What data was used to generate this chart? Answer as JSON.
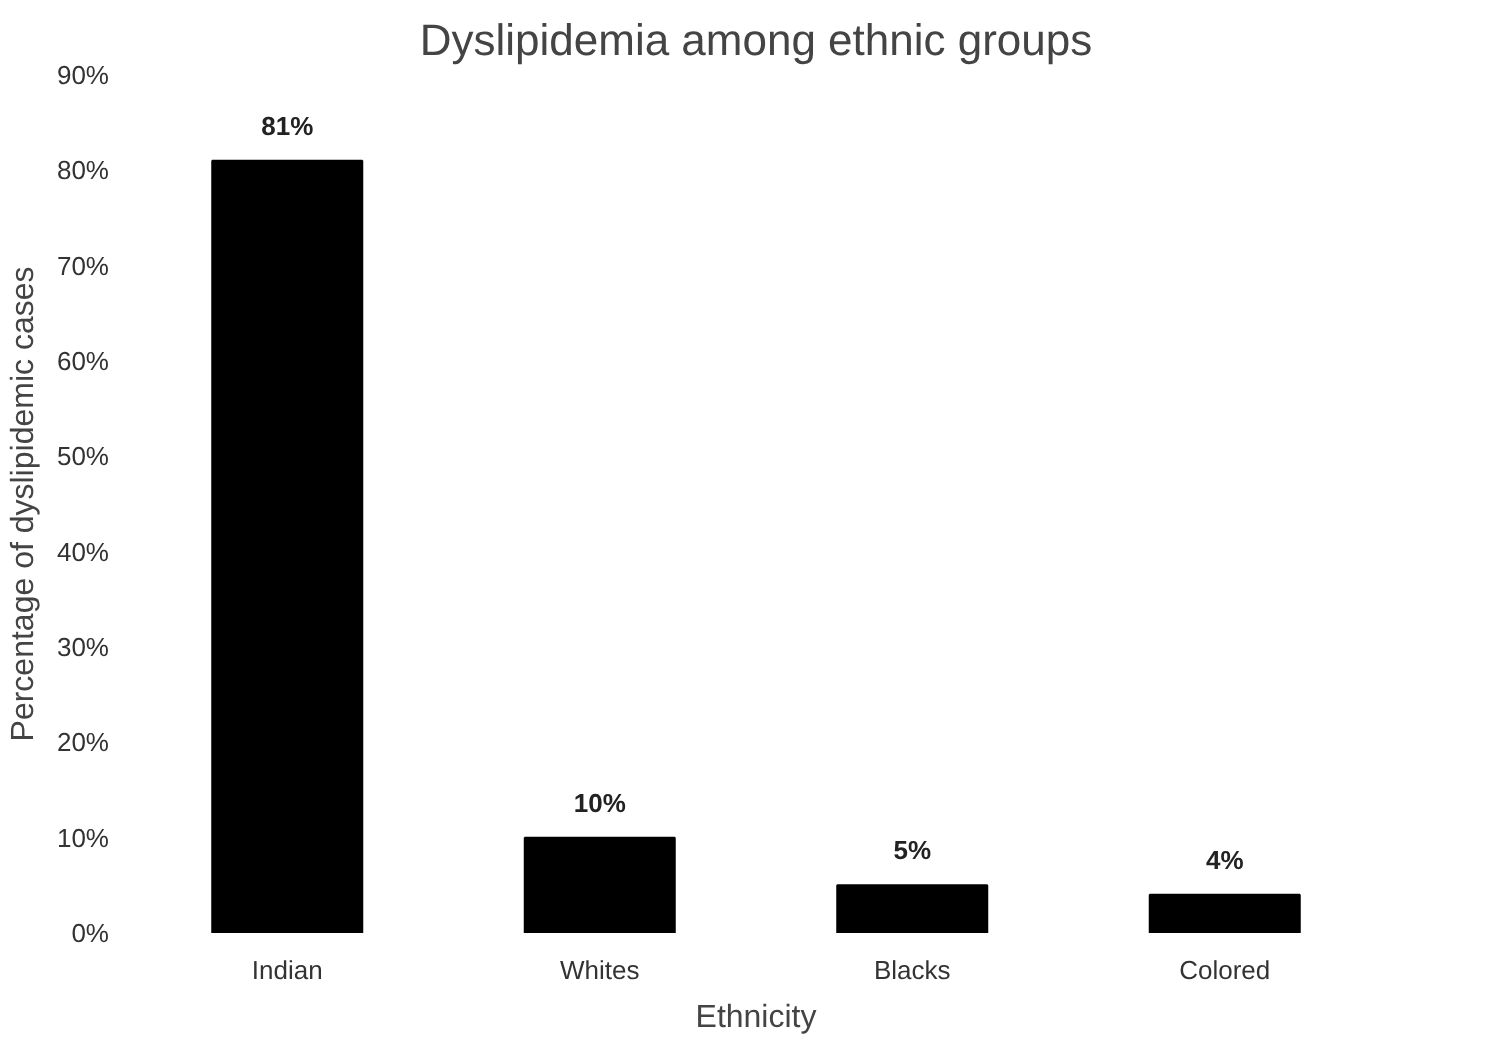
{
  "chart_data": {
    "type": "bar",
    "title": "Dyslipidemia among ethnic groups",
    "xlabel": "Ethnicity",
    "ylabel": "Percentage of dyslipidemic cases",
    "categories": [
      "Indian",
      "Whites",
      "Blacks",
      "Colored"
    ],
    "values": [
      81,
      10,
      5,
      4
    ],
    "color": "#000000",
    "value_labels": [
      "81%",
      "10%",
      "5%",
      "4%"
    ],
    "ylim": [
      0,
      90
    ],
    "yticks": [
      {
        "value": 0,
        "label": "0%"
      },
      {
        "value": 10,
        "label": "10%"
      },
      {
        "value": 20,
        "label": "20%"
      },
      {
        "value": 30,
        "label": "30%"
      },
      {
        "value": 40,
        "label": "40%"
      },
      {
        "value": 50,
        "label": "50%"
      },
      {
        "value": 60,
        "label": "60%"
      },
      {
        "value": 70,
        "label": "70%"
      },
      {
        "value": 80,
        "label": "80%"
      },
      {
        "value": 90,
        "label": "90%"
      }
    ],
    "grid": false
  }
}
